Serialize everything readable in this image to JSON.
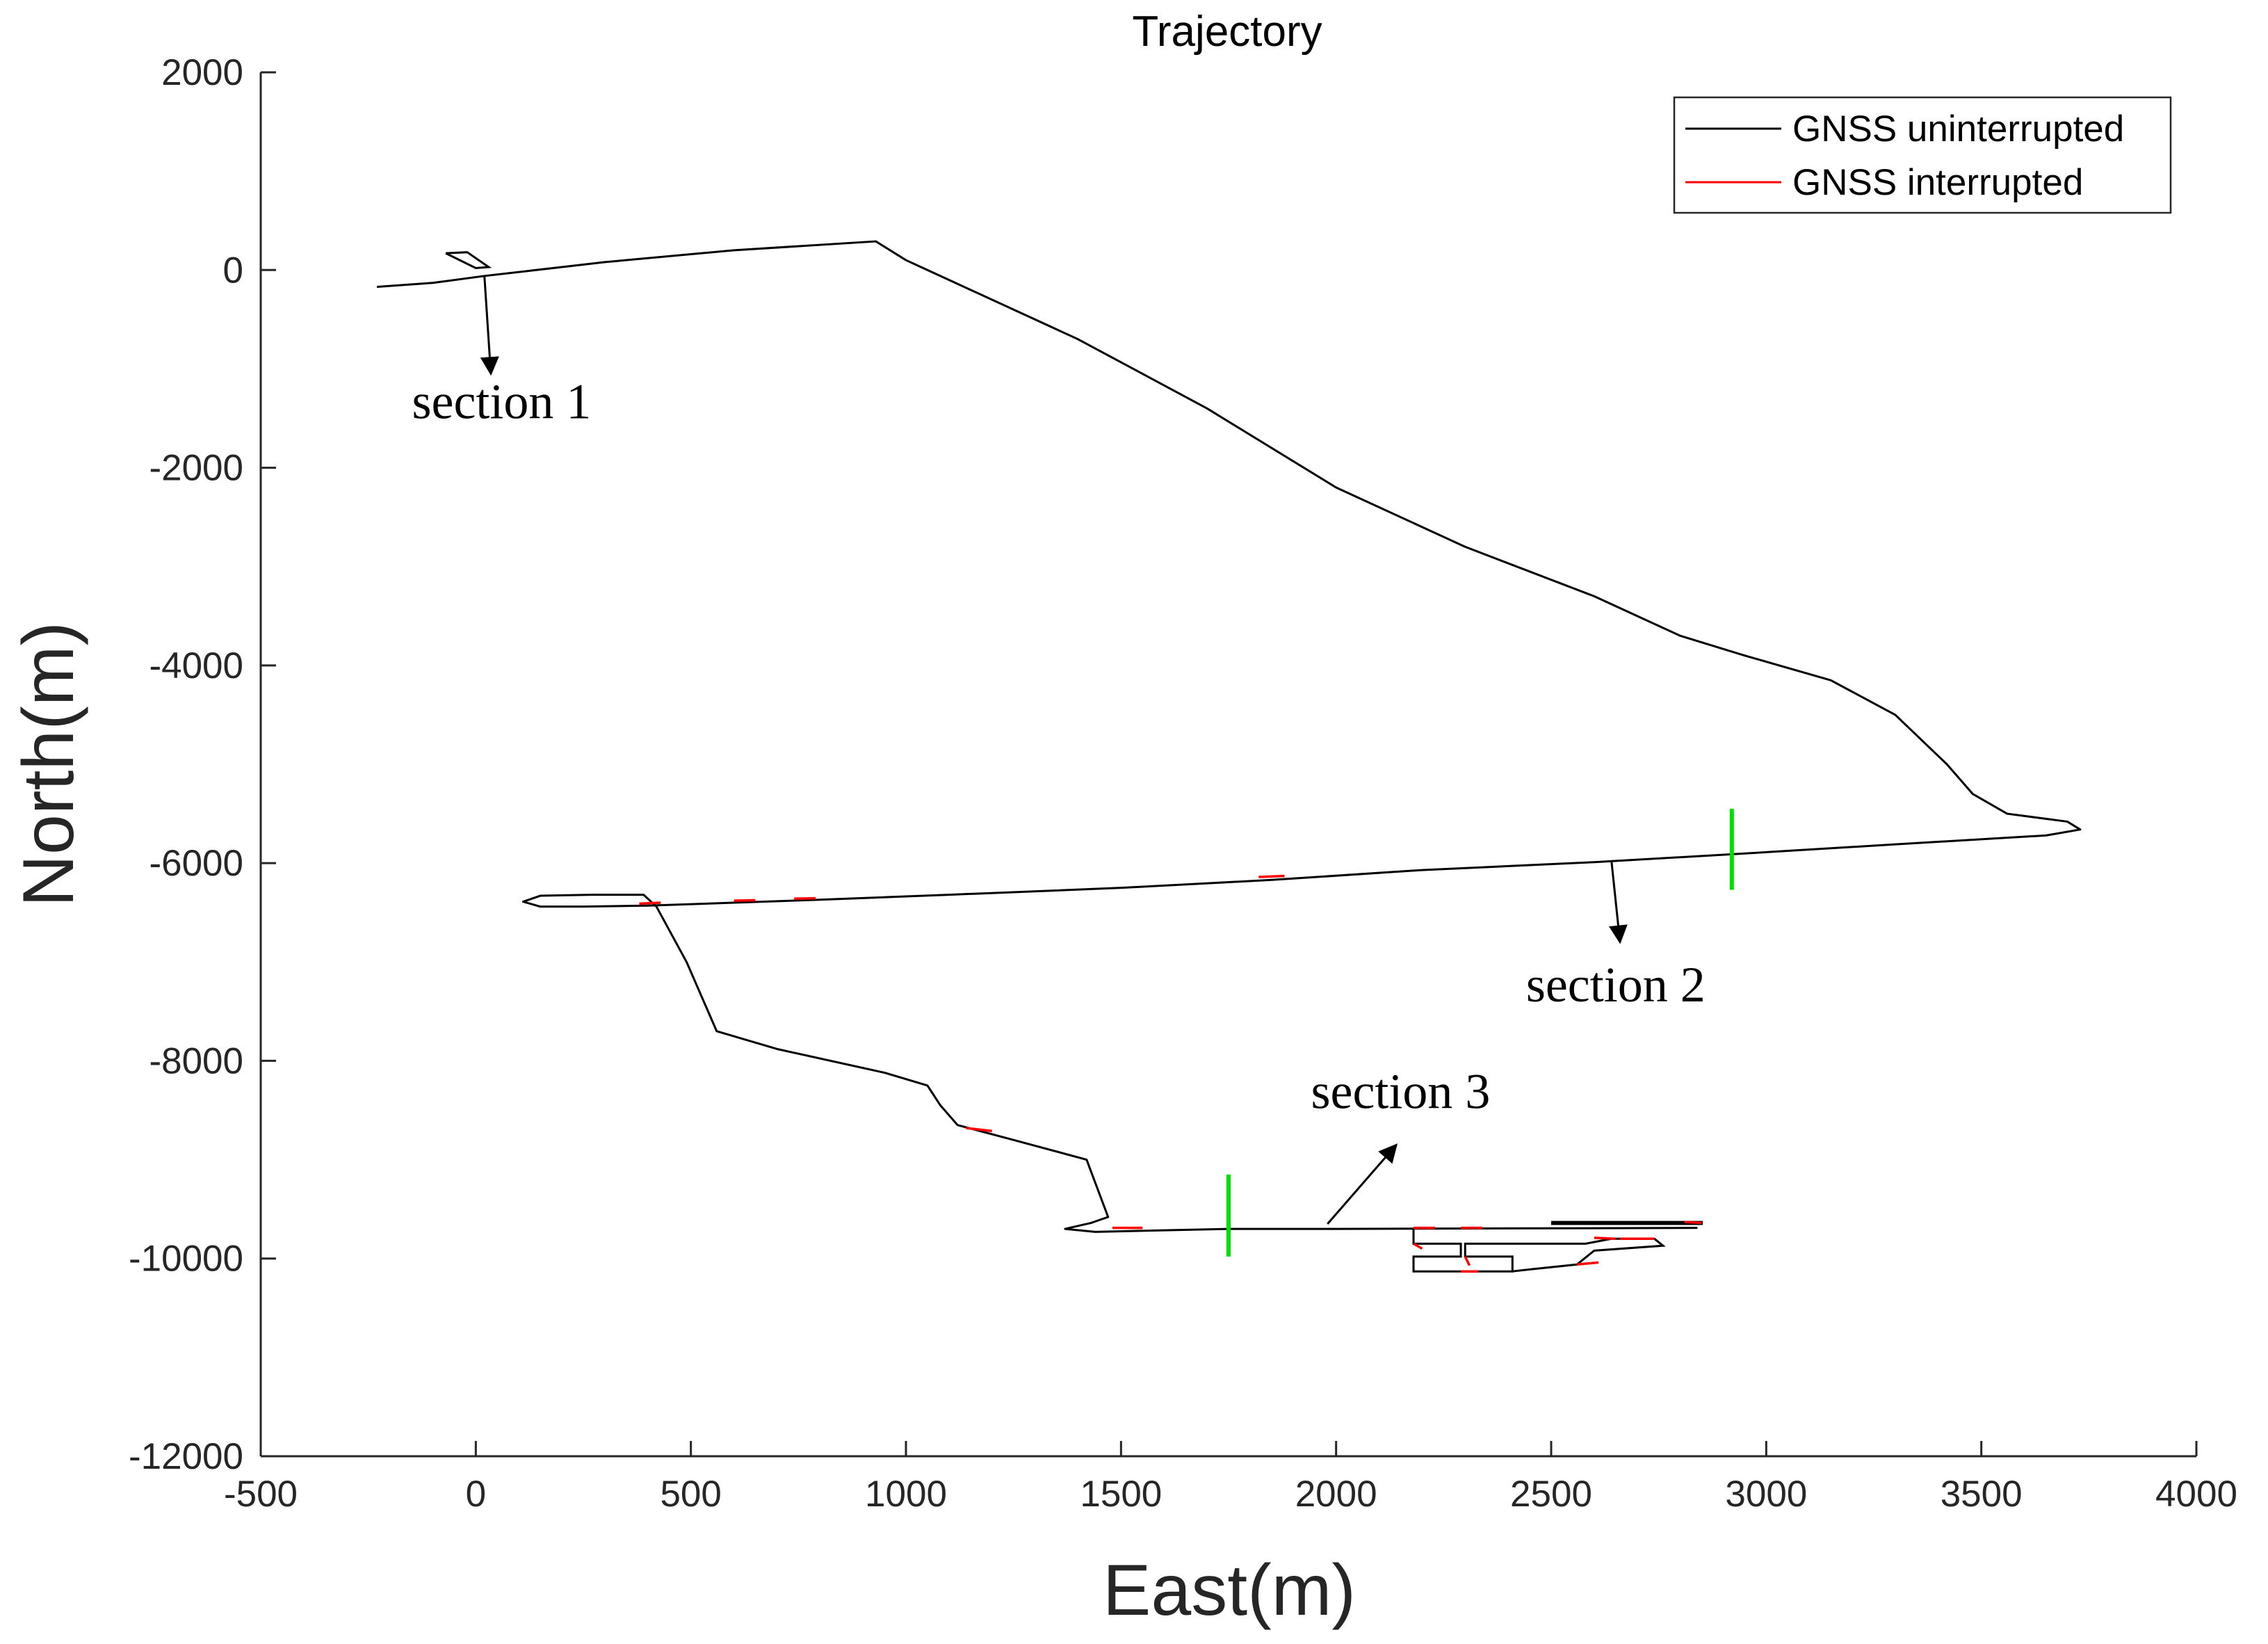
{
  "chart_data": {
    "type": "line",
    "title": "Trajectory",
    "xlabel": "East(m)",
    "ylabel": "North(m)",
    "xlim": [
      -500,
      4000
    ],
    "ylim": [
      -12000,
      2000
    ],
    "xticks": [
      -500,
      0,
      500,
      1000,
      1500,
      2000,
      2500,
      3000,
      3500,
      4000
    ],
    "yticks": [
      2000,
      0,
      -2000,
      -4000,
      -6000,
      -8000,
      -10000,
      -12000
    ],
    "grid": false,
    "legend_position": "top-right",
    "colors": {
      "uninterrupted": "#000000",
      "interrupted": "#ff0000",
      "section_marker": "#00e000"
    },
    "series": [
      {
        "name": "GNSS uninterrupted",
        "x": [
          -230,
          -100,
          20,
          300,
          600,
          930,
          1000,
          1100,
          1400,
          1700,
          2000,
          2300,
          2600,
          2800,
          2950,
          3150,
          3300,
          3420,
          3480,
          3560,
          3700,
          3730,
          3650,
          3300,
          2920,
          2600,
          2200,
          1850,
          1500,
          1100,
          800,
          600,
          400,
          250,
          150,
          110,
          150,
          270,
          390,
          420,
          490,
          560,
          700,
          950,
          1050,
          1080,
          1120,
          1250,
          1420,
          1470,
          1430,
          1370,
          1440,
          1750,
          2000,
          2840
        ],
        "y": [
          -170,
          -130,
          -60,
          80,
          200,
          290,
          100,
          -100,
          -700,
          -1400,
          -2200,
          -2800,
          -3300,
          -3700,
          -3900,
          -4150,
          -4500,
          -5000,
          -5300,
          -5500,
          -5580,
          -5660,
          -5720,
          -5810,
          -5910,
          -5990,
          -6070,
          -6170,
          -6250,
          -6320,
          -6370,
          -6400,
          -6430,
          -6440,
          -6440,
          -6390,
          -6330,
          -6320,
          -6320,
          -6440,
          -7000,
          -7700,
          -7880,
          -8120,
          -8250,
          -8450,
          -8650,
          -8800,
          -9000,
          -9580,
          -9640,
          -9700,
          -9730,
          -9700,
          -9700,
          -9690
        ]
      },
      {
        "name": "GNSS interrupted",
        "segments": [
          {
            "x": [
              380,
              430
            ],
            "y": [
              -6410,
              -6400
            ]
          },
          {
            "x": [
              600,
              650
            ],
            "y": [
              -6380,
              -6375
            ]
          },
          {
            "x": [
              740,
              790
            ],
            "y": [
              -6360,
              -6355
            ]
          },
          {
            "x": [
              1820,
              1880
            ],
            "y": [
              -6140,
              -6130
            ]
          },
          {
            "x": [
              1140,
              1200
            ],
            "y": [
              -8680,
              -8710
            ]
          },
          {
            "x": [
              1480,
              1550
            ],
            "y": [
              -9690,
              -9690
            ]
          },
          {
            "x": [
              2180,
              2230
            ],
            "y": [
              -9690,
              -9690
            ]
          },
          {
            "x": [
              2290,
              2340
            ],
            "y": [
              -9690,
              -9690
            ]
          },
          {
            "x": [
              2600,
              2650
            ],
            "y": [
              -9790,
              -9800
            ]
          },
          {
            "x": [
              2660,
              2740
            ],
            "y": [
              -9800,
              -9800
            ]
          },
          {
            "x": [
              2180,
              2200
            ],
            "y": [
              -9850,
              -9900
            ]
          },
          {
            "x": [
              2290,
              2330
            ],
            "y": [
              -10130,
              -10130
            ]
          },
          {
            "x": [
              2300,
              2310
            ],
            "y": [
              -9980,
              -10070
            ]
          },
          {
            "x": [
              2560,
              2610
            ],
            "y": [
              -10060,
              -10040
            ]
          },
          {
            "x": [
              2810,
              2850
            ],
            "y": [
              -9630,
              -9640
            ]
          }
        ]
      }
    ],
    "section_markers": [
      {
        "x": 2920,
        "y_range": [
          -5450,
          -6270
        ]
      },
      {
        "x": 1750,
        "y_range": [
          -9150,
          -9980
        ]
      }
    ],
    "annotations": [
      {
        "text": "section 1",
        "tail": [
          20,
          -60
        ],
        "head": [
          35,
          -1050
        ],
        "label_at": [
          60,
          -1500
        ]
      },
      {
        "text": "section 2",
        "tail": [
          2640,
          -5970
        ],
        "head": [
          2660,
          -6800
        ],
        "label_at": [
          2650,
          -7400
        ]
      },
      {
        "text": "section 3",
        "tail": [
          1980,
          -9650
        ],
        "head": [
          2140,
          -8850
        ],
        "label_at": [
          2150,
          -8480
        ]
      }
    ]
  }
}
